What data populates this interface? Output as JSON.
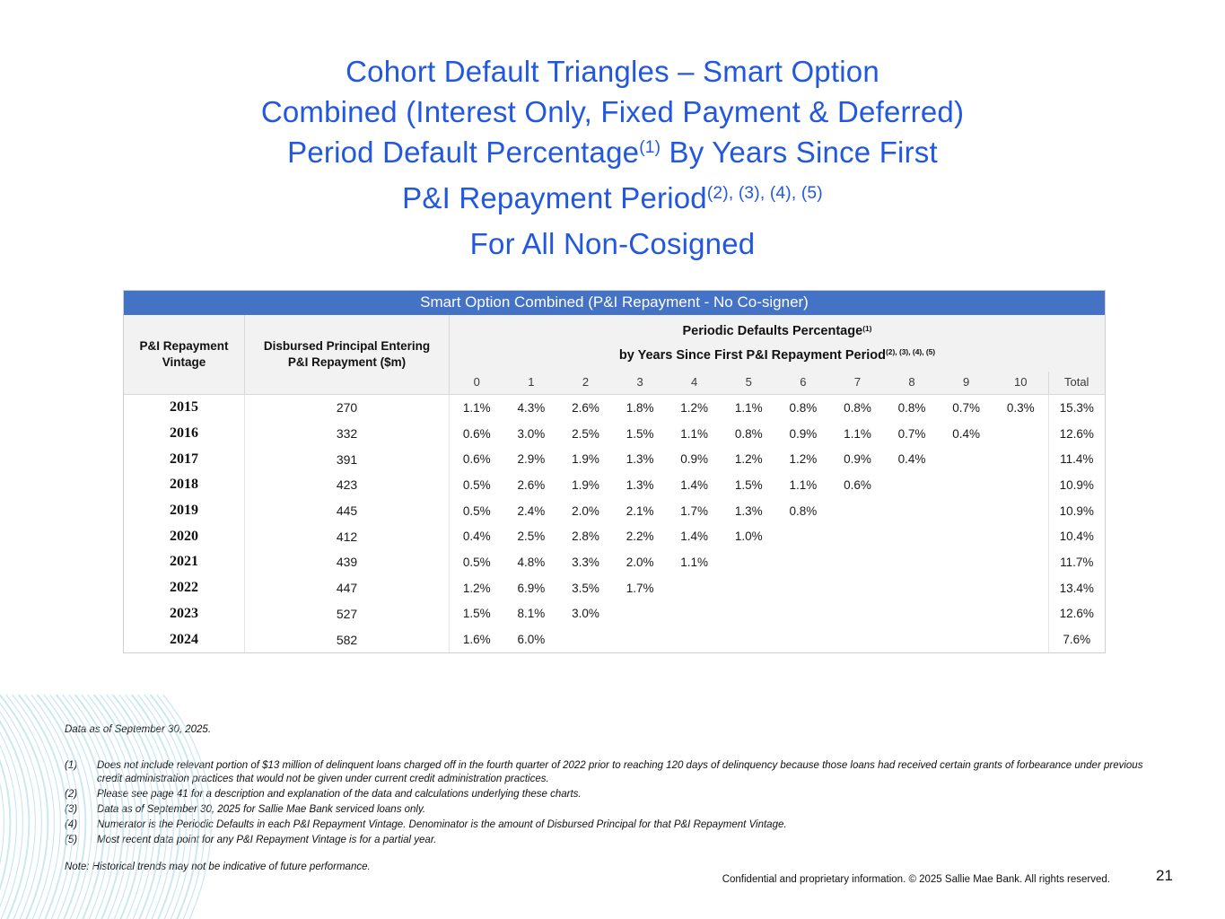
{
  "theme": {
    "title_blue": "#2257df",
    "banner_blue": "#4472c4",
    "header_gray": "#f2f2f2",
    "wave_blue": "#a8d8ea"
  },
  "title": {
    "line1": "Cohort Default Triangles – Smart Option",
    "line2": "Combined (Interest Only, Fixed Payment & Deferred)",
    "line3_pre": "Period Default Percentage",
    "line3_sup": "(1)",
    "line3_post": " By Years Since First",
    "line4_pre": "P&I Repayment Period",
    "line4_sup": "(2), (3), (4), (5)",
    "line5": "For All Non-Cosigned"
  },
  "table": {
    "banner": "Smart Option Combined (P&I Repayment - No Co-signer)",
    "col1_line1": "P&I Repayment",
    "col1_line2": "Vintage",
    "col2_line1": "Disbursed Principal Entering",
    "col2_line2": "P&I Repayment ($m)",
    "group_line1_pre": "Periodic Defaults Percentage",
    "group_line1_sup": "(1)",
    "group_line2_pre": "by Years Since First P&I Repayment Period",
    "group_line2_sup": "(2), (3), (4), (5)",
    "year_headers": [
      "0",
      "1",
      "2",
      "3",
      "4",
      "5",
      "6",
      "7",
      "8",
      "9",
      "10"
    ],
    "total_header": "Total"
  },
  "chart_data": {
    "type": "table",
    "title": "Smart Option Combined (P&I Repayment - No Co-signer)",
    "columns": [
      "P&I Repayment Vintage",
      "Disbursed Principal Entering P&I Repayment ($m)",
      "0",
      "1",
      "2",
      "3",
      "4",
      "5",
      "6",
      "7",
      "8",
      "9",
      "10",
      "Total"
    ],
    "rows": [
      {
        "vintage": "2015",
        "disbursed": "270",
        "values": [
          "1.1%",
          "4.3%",
          "2.6%",
          "1.8%",
          "1.2%",
          "1.1%",
          "0.8%",
          "0.8%",
          "0.8%",
          "0.7%",
          "0.3%"
        ],
        "total": "15.3%"
      },
      {
        "vintage": "2016",
        "disbursed": "332",
        "values": [
          "0.6%",
          "3.0%",
          "2.5%",
          "1.5%",
          "1.1%",
          "0.8%",
          "0.9%",
          "1.1%",
          "0.7%",
          "0.4%"
        ],
        "total": "12.6%"
      },
      {
        "vintage": "2017",
        "disbursed": "391",
        "values": [
          "0.6%",
          "2.9%",
          "1.9%",
          "1.3%",
          "0.9%",
          "1.2%",
          "1.2%",
          "0.9%",
          "0.4%"
        ],
        "total": "11.4%"
      },
      {
        "vintage": "2018",
        "disbursed": "423",
        "values": [
          "0.5%",
          "2.6%",
          "1.9%",
          "1.3%",
          "1.4%",
          "1.5%",
          "1.1%",
          "0.6%"
        ],
        "total": "10.9%"
      },
      {
        "vintage": "2019",
        "disbursed": "445",
        "values": [
          "0.5%",
          "2.4%",
          "2.0%",
          "2.1%",
          "1.7%",
          "1.3%",
          "0.8%"
        ],
        "total": "10.9%"
      },
      {
        "vintage": "2020",
        "disbursed": "412",
        "values": [
          "0.4%",
          "2.5%",
          "2.8%",
          "2.2%",
          "1.4%",
          "1.0%"
        ],
        "total": "10.4%"
      },
      {
        "vintage": "2021",
        "disbursed": "439",
        "values": [
          "0.5%",
          "4.8%",
          "3.3%",
          "2.0%",
          "1.1%"
        ],
        "total": "11.7%"
      },
      {
        "vintage": "2022",
        "disbursed": "447",
        "values": [
          "1.2%",
          "6.9%",
          "3.5%",
          "1.7%"
        ],
        "total": "13.4%"
      },
      {
        "vintage": "2023",
        "disbursed": "527",
        "values": [
          "1.5%",
          "8.1%",
          "3.0%"
        ],
        "total": "12.6%"
      },
      {
        "vintage": "2024",
        "disbursed": "582",
        "values": [
          "1.6%",
          "6.0%"
        ],
        "total": "7.6%"
      }
    ]
  },
  "footnotes": {
    "data_as_of": "Data as of September 30, 2025.",
    "items": [
      {
        "num": "(1)",
        "text": "Does not include relevant portion of $13 million of delinquent loans charged off in the fourth quarter of 2022 prior to reaching 120 days of delinquency because those loans had received certain grants of forbearance under previous credit administration practices that would not be given under current credit administration practices."
      },
      {
        "num": "(2)",
        "text": "Please see page 41 for a description and explanation of the data and calculations underlying these charts."
      },
      {
        "num": "(3)",
        "text": "Data as of September 30, 2025 for Sallie Mae Bank serviced loans only."
      },
      {
        "num": "(4)",
        "text": "Numerator is the Periodic Defaults in each P&I Repayment Vintage. Denominator is the amount of Disbursed Principal for that P&I Repayment Vintage."
      },
      {
        "num": "(5)",
        "text": "Most recent data point for any P&I Repayment Vintage is for a partial year."
      }
    ],
    "note": "Note: Historical trends may not be indicative of future performance."
  },
  "footer": {
    "confidential": "Confidential and proprietary information. © 2025 Sallie Mae Bank. All rights reserved.",
    "page_number": "21"
  }
}
